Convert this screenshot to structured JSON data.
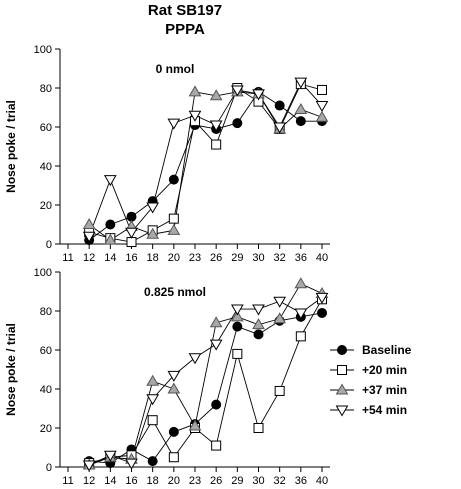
{
  "header": {
    "title_line1": "Rat SB197",
    "title_line2": "PPPA"
  },
  "legend": {
    "placement": "right of lower panel",
    "entries": [
      {
        "label": "Baseline",
        "marker": "filled-circle"
      },
      {
        "label": "+20 min",
        "marker": "open-square"
      },
      {
        "label": "+37 min",
        "marker": "gray-triangle-up"
      },
      {
        "label": "+54 min",
        "marker": "open-triangle-down"
      }
    ]
  },
  "chart_data": [
    {
      "type": "line",
      "title": "0 nmol",
      "xlabel": "",
      "ylabel": "Nose poke / trial",
      "x_tick_labels": [
        "11",
        "12",
        "14",
        "16",
        "18",
        "20",
        "23",
        "26",
        "29",
        "30",
        "32",
        "36",
        "40"
      ],
      "ylim": [
        0,
        100
      ],
      "y_ticks": [
        0,
        20,
        40,
        60,
        80,
        100
      ],
      "grid": false,
      "series": [
        {
          "name": "Baseline",
          "x": [
            "12",
            "14",
            "16",
            "18",
            "20",
            "23",
            "26",
            "29",
            "30",
            "32",
            "36",
            "40"
          ],
          "values": [
            2,
            10,
            14,
            22,
            33,
            61,
            59,
            62,
            78,
            71,
            63,
            63
          ]
        },
        {
          "name": "+20 min",
          "x": [
            "12",
            "14",
            "16",
            "18",
            "20",
            "23",
            "26",
            "29",
            "30",
            "32",
            "36",
            "40"
          ],
          "values": [
            6,
            3,
            1,
            7,
            13,
            63,
            51,
            80,
            73,
            59,
            82,
            79
          ]
        },
        {
          "name": "+37 min",
          "x": [
            "12",
            "14",
            "16",
            "18",
            "20",
            "23",
            "26",
            "29",
            "30",
            "32",
            "36",
            "40"
          ],
          "values": [
            10,
            2,
            9,
            5,
            7,
            78,
            76,
            78,
            77,
            59,
            69,
            65
          ]
        },
        {
          "name": "+54 min",
          "x": [
            "12",
            "14",
            "16",
            "18",
            "20",
            "23",
            "26",
            "29",
            "30",
            "32",
            "36",
            "40"
          ],
          "values": [
            4,
            33,
            6,
            19,
            62,
            66,
            61,
            79,
            77,
            60,
            83,
            71
          ]
        }
      ]
    },
    {
      "type": "line",
      "title": "0.825 nmol",
      "xlabel": "",
      "ylabel": "Nose poke / trial",
      "x_tick_labels": [
        "11",
        "12",
        "14",
        "16",
        "18",
        "20",
        "23",
        "26",
        "29",
        "30",
        "32",
        "36",
        "40"
      ],
      "ylim": [
        0,
        100
      ],
      "y_ticks": [
        0,
        20,
        40,
        60,
        80,
        100
      ],
      "grid": false,
      "series": [
        {
          "name": "Baseline",
          "x": [
            "12",
            "14",
            "16",
            "18",
            "20",
            "23",
            "26",
            "29",
            "30",
            "32",
            "36",
            "40"
          ],
          "values": [
            3,
            2,
            9,
            3,
            18,
            22,
            32,
            72,
            68,
            75,
            77,
            79
          ]
        },
        {
          "name": "+20 min",
          "x": [
            "12",
            "14",
            "16",
            "18",
            "20",
            "23",
            "26",
            "29",
            "30",
            "32",
            "36",
            "40"
          ],
          "values": [
            2,
            5,
            6,
            24,
            5,
            20,
            11,
            58,
            20,
            39,
            67,
            86
          ]
        },
        {
          "name": "+37 min",
          "x": [
            "12",
            "14",
            "16",
            "18",
            "20",
            "23",
            "26",
            "29",
            "30",
            "32",
            "36",
            "40"
          ],
          "values": [
            1,
            5,
            4,
            44,
            40,
            21,
            74,
            77,
            73,
            76,
            94,
            89
          ]
        },
        {
          "name": "+54 min",
          "x": [
            "12",
            "14",
            "16",
            "18",
            "20",
            "23",
            "26",
            "29",
            "30",
            "32",
            "36",
            "40"
          ],
          "values": [
            1,
            6,
            2,
            35,
            47,
            56,
            63,
            81,
            81,
            85,
            79,
            87
          ]
        }
      ]
    }
  ]
}
